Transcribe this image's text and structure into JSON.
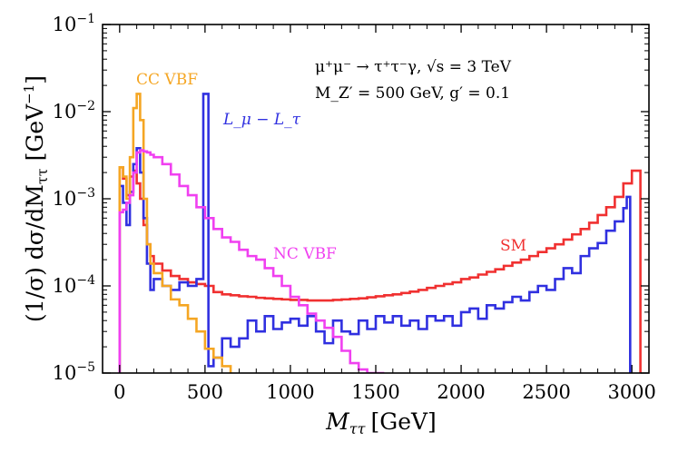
{
  "chart_data": {
    "type": "line",
    "style": "step-histogram",
    "xlabel": "M_ττ [GeV]",
    "xlabel_parts": {
      "symbol": "M",
      "sub": "ττ",
      "unit": "[GeV]"
    },
    "ylabel": "(1/σ) dσ/dM_ττ [GeV⁻¹]",
    "ylabel_parts": {
      "prefix": "(1/σ) dσ/dM",
      "sub": "ττ",
      "unit": "[GeV",
      "unit_sup": "−1",
      "unit_close": "]"
    },
    "xlim": [
      -100,
      3100
    ],
    "ylim": [
      1e-05,
      0.1
    ],
    "yscale": "log",
    "xticks": [
      {
        "value": 0,
        "label": "0"
      },
      {
        "value": 500,
        "label": "500"
      },
      {
        "value": 1000,
        "label": "1000"
      },
      {
        "value": 1500,
        "label": "1500"
      },
      {
        "value": 2000,
        "label": "2000"
      },
      {
        "value": 2500,
        "label": "2500"
      },
      {
        "value": 3000,
        "label": "3000"
      }
    ],
    "yticks": [
      {
        "value": 1e-05,
        "base": "10",
        "exp": "−5"
      },
      {
        "value": 0.0001,
        "base": "10",
        "exp": "−4"
      },
      {
        "value": 0.001,
        "base": "10",
        "exp": "−3"
      },
      {
        "value": 0.01,
        "base": "10",
        "exp": "−2"
      },
      {
        "value": 0.1,
        "base": "10",
        "exp": "−1"
      }
    ],
    "annotation": {
      "line1": "μ⁺μ⁻ → τ⁺τ⁻γ, √s = 3 TeV",
      "line2": "M_Z′ = 500 GeV, g′ = 0.1"
    },
    "series": [
      {
        "name": "SM",
        "label": "SM",
        "color": "#f03030",
        "x": [
          0,
          20,
          40,
          60,
          80,
          100,
          120,
          140,
          160,
          180,
          200,
          250,
          300,
          350,
          400,
          450,
          500,
          550,
          600,
          650,
          700,
          750,
          800,
          850,
          900,
          950,
          1000,
          1050,
          1100,
          1150,
          1200,
          1250,
          1300,
          1350,
          1400,
          1450,
          1500,
          1550,
          1600,
          1650,
          1700,
          1750,
          1800,
          1850,
          1900,
          1950,
          2000,
          2050,
          2100,
          2150,
          2200,
          2250,
          2300,
          2350,
          2400,
          2450,
          2500,
          2550,
          2600,
          2650,
          2700,
          2750,
          2800,
          2850,
          2900,
          2950,
          3000
        ],
        "values": [
          0.0023,
          0.0017,
          0.0011,
          0.0018,
          0.0021,
          0.0015,
          0.001,
          0.0005,
          0.0003,
          0.00022,
          0.00018,
          0.00015,
          0.00013,
          0.00012,
          0.00011,
          0.000105,
          0.0001,
          8.5e-05,
          8e-05,
          7.8e-05,
          7.6e-05,
          7.5e-05,
          7.3e-05,
          7.2e-05,
          7.1e-05,
          7e-05,
          6.9e-05,
          6.9e-05,
          6.8e-05,
          6.8e-05,
          6.8e-05,
          6.9e-05,
          7e-05,
          7.1e-05,
          7.2e-05,
          7.4e-05,
          7.6e-05,
          7.8e-05,
          8e-05,
          8.3e-05,
          8.6e-05,
          9e-05,
          9.5e-05,
          0.0001,
          0.000105,
          0.00011,
          0.00012,
          0.000125,
          0.000135,
          0.000145,
          0.000155,
          0.00017,
          0.000185,
          0.0002,
          0.00022,
          0.000245,
          0.00027,
          0.0003,
          0.00034,
          0.00039,
          0.00045,
          0.00053,
          0.00065,
          0.0008,
          0.00105,
          0.0015,
          0.0021
        ]
      },
      {
        "name": "Lmu-Ltau",
        "label": "L_μ − L_τ",
        "color": "#3030e0",
        "x": [
          0,
          20,
          40,
          60,
          80,
          100,
          120,
          140,
          160,
          180,
          200,
          250,
          300,
          350,
          400,
          450,
          490,
          520,
          550,
          600,
          650,
          700,
          750,
          800,
          850,
          900,
          950,
          1000,
          1050,
          1100,
          1150,
          1200,
          1250,
          1300,
          1350,
          1400,
          1450,
          1500,
          1550,
          1600,
          1650,
          1700,
          1750,
          1800,
          1850,
          1900,
          1950,
          2000,
          2050,
          2100,
          2150,
          2200,
          2250,
          2300,
          2350,
          2400,
          2450,
          2500,
          2550,
          2600,
          2650,
          2700,
          2750,
          2800,
          2850,
          2900,
          2950,
          2970
        ],
        "values": [
          0.0014,
          0.0009,
          0.0005,
          0.0012,
          0.0025,
          0.0038,
          0.002,
          0.0006,
          0.00018,
          9e-05,
          0.00012,
          0.0001,
          9e-05,
          0.00011,
          0.0001,
          0.00012,
          0.016,
          1.2e-05,
          1.5e-05,
          2.5e-05,
          2e-05,
          2.5e-05,
          4e-05,
          3e-05,
          4.5e-05,
          3.2e-05,
          3.8e-05,
          4.2e-05,
          3.5e-05,
          4.5e-05,
          3e-05,
          2.2e-05,
          4e-05,
          3e-05,
          2.8e-05,
          4e-05,
          3.2e-05,
          4.5e-05,
          3.8e-05,
          4.5e-05,
          3.5e-05,
          4e-05,
          3.2e-05,
          4.5e-05,
          4e-05,
          4.5e-05,
          3.5e-05,
          5e-05,
          5.5e-05,
          4.2e-05,
          6e-05,
          5.5e-05,
          6.5e-05,
          7.5e-05,
          6.8e-05,
          8.5e-05,
          0.0001,
          9e-05,
          0.00012,
          0.00016,
          0.00014,
          0.00022,
          0.00027,
          0.00031,
          0.00043,
          0.00055,
          0.00078,
          0.00105
        ]
      },
      {
        "name": "CC VBF",
        "label": "CC VBF",
        "color": "#f5a623",
        "x": [
          0,
          20,
          40,
          60,
          80,
          100,
          120,
          140,
          160,
          180,
          200,
          250,
          300,
          350,
          400,
          450,
          500,
          550,
          600
        ],
        "values": [
          0.0023,
          0.0018,
          0.001,
          0.003,
          0.011,
          0.016,
          0.008,
          0.001,
          0.0003,
          0.00018,
          0.00014,
          0.0001,
          7e-05,
          6e-05,
          4.2e-05,
          3e-05,
          1.9e-05,
          1.5e-05,
          1.2e-05
        ]
      },
      {
        "name": "NC VBF",
        "label": "NC VBF",
        "color": "#f040f0",
        "x": [
          0,
          20,
          40,
          60,
          80,
          100,
          120,
          140,
          160,
          180,
          200,
          250,
          300,
          350,
          400,
          450,
          500,
          550,
          600,
          650,
          700,
          750,
          800,
          850,
          900,
          950,
          1000,
          1050,
          1100,
          1150,
          1200,
          1250,
          1300,
          1350,
          1400,
          1450,
          1500
        ],
        "values": [
          0.0007,
          0.00075,
          0.0009,
          0.0011,
          0.002,
          0.0034,
          0.0036,
          0.0035,
          0.0034,
          0.0032,
          0.003,
          0.0025,
          0.0019,
          0.0014,
          0.0011,
          0.0008,
          0.0006,
          0.00045,
          0.00036,
          0.00032,
          0.00026,
          0.00022,
          0.0002,
          0.00016,
          0.00013,
          0.0001,
          7.5e-05,
          6e-05,
          4.8e-05,
          4e-05,
          3.3e-05,
          2.6e-05,
          1.8e-05,
          1.3e-05,
          1.1e-05,
          1e-05,
          1e-05
        ]
      }
    ]
  }
}
